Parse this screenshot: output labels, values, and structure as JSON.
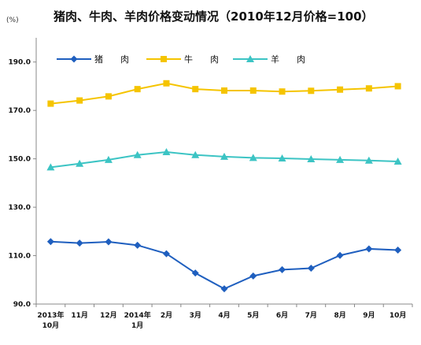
{
  "chart_data": {
    "type": "line",
    "title": "猪肉、牛肉、羊肉价格变动情况（2010年12月价格=100）",
    "unit_label": "(%)",
    "x_labels": [
      [
        "2013年",
        "10月"
      ],
      [
        "11月"
      ],
      [
        "12月"
      ],
      [
        "2014年",
        "1月"
      ],
      [
        "2月"
      ],
      [
        "3月"
      ],
      [
        "4月"
      ],
      [
        "5月"
      ],
      [
        "6月"
      ],
      [
        "7月"
      ],
      [
        "8月"
      ],
      [
        "9月"
      ],
      [
        "10月"
      ]
    ],
    "ylim": [
      90,
      200
    ],
    "yticks": [
      "90.0",
      "110.0",
      "130.0",
      "150.0",
      "170.0",
      "190.0"
    ],
    "ytick_values": [
      90,
      110,
      130,
      150,
      170,
      190
    ],
    "legend_position": "top-left",
    "series": [
      {
        "name": "猪　　肉",
        "color": "#1f5fbf",
        "marker": "diamond",
        "values": [
          115.8,
          115.2,
          115.7,
          114.3,
          110.8,
          102.8,
          96.3,
          101.6,
          104.2,
          104.8,
          110.1,
          112.8,
          112.3
        ]
      },
      {
        "name": "牛　　肉",
        "color": "#f5c400",
        "marker": "square",
        "values": [
          172.8,
          174.1,
          175.8,
          178.8,
          181.2,
          178.8,
          178.2,
          178.2,
          177.8,
          178.1,
          178.6,
          179.1,
          180.0
        ]
      },
      {
        "name": "羊　　肉",
        "color": "#3cc4c4",
        "marker": "triangle",
        "values": [
          146.5,
          148.0,
          149.6,
          151.6,
          152.8,
          151.6,
          150.9,
          150.4,
          150.2,
          149.9,
          149.6,
          149.3,
          148.9
        ]
      }
    ]
  }
}
